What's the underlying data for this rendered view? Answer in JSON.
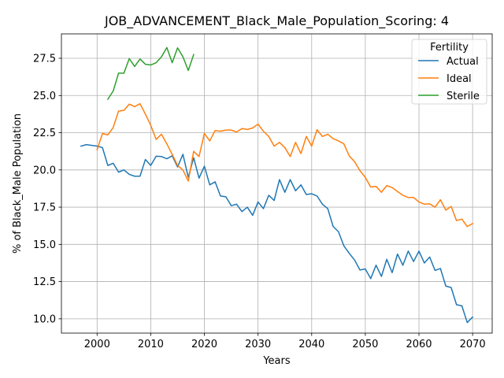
{
  "chart_data": {
    "type": "line",
    "title": "JOB_ADVANCEMENT_Black_Male_Population_Scoring: 4",
    "xlabel": "Years",
    "ylabel": "% of Black_Male Population",
    "xlim": [
      1993.35,
      2073.65
    ],
    "ylim": [
      9.04,
      29.14
    ],
    "xticks": [
      2000,
      2010,
      2020,
      2030,
      2040,
      2050,
      2060,
      2070
    ],
    "xtick_labels": [
      "2000",
      "2010",
      "2020",
      "2030",
      "2040",
      "2050",
      "2060",
      "2070"
    ],
    "yticks": [
      10,
      12.5,
      15,
      17.5,
      20,
      22.5,
      25,
      27.5
    ],
    "ytick_labels": [
      "10.0",
      "12.5",
      "15.0",
      "17.5",
      "20.0",
      "22.5",
      "25.0",
      "27.5"
    ],
    "grid": true,
    "legend": {
      "title": "Fertility",
      "position": "top-right"
    },
    "series": [
      {
        "name": "Actual",
        "color": "#1f77b4",
        "x": [
          1997,
          1998,
          1999,
          2000,
          2001,
          2002,
          2003,
          2004,
          2005,
          2006,
          2007,
          2008,
          2009,
          2010,
          2011,
          2012,
          2013,
          2014,
          2015,
          2016,
          2017,
          2018,
          2019,
          2020,
          2021,
          2022,
          2023,
          2024,
          2025,
          2026,
          2027,
          2028,
          2029,
          2030,
          2031,
          2032,
          2033,
          2034,
          2035,
          2036,
          2037,
          2038,
          2039,
          2040,
          2041,
          2042,
          2043,
          2044,
          2045,
          2046,
          2047,
          2048,
          2049,
          2050,
          2051,
          2052,
          2053,
          2054,
          2055,
          2056,
          2057,
          2058,
          2059,
          2060,
          2061,
          2062,
          2063,
          2064,
          2065,
          2066,
          2067,
          2068,
          2069,
          2070
        ],
        "y": [
          21.6,
          21.7,
          21.65,
          21.6,
          21.5,
          20.3,
          20.45,
          19.85,
          20.0,
          19.7,
          19.58,
          19.58,
          20.7,
          20.3,
          20.92,
          20.9,
          20.75,
          20.95,
          20.2,
          21.05,
          19.5,
          20.82,
          19.45,
          20.25,
          19.0,
          19.2,
          18.25,
          18.2,
          17.6,
          17.7,
          17.2,
          17.5,
          16.95,
          17.85,
          17.4,
          18.3,
          17.95,
          19.35,
          18.5,
          19.35,
          18.6,
          19.0,
          18.35,
          18.4,
          18.25,
          17.7,
          17.4,
          16.2,
          15.85,
          14.9,
          14.4,
          13.95,
          13.28,
          13.35,
          12.7,
          13.6,
          12.85,
          14.0,
          13.1,
          14.35,
          13.6,
          14.55,
          13.85,
          14.55,
          13.75,
          14.15,
          13.25,
          13.38,
          12.2,
          12.1,
          10.95,
          10.87,
          9.75,
          10.12
        ]
      },
      {
        "name": "Ideal",
        "color": "#ff7f0e",
        "x": [
          2000,
          2001,
          2002,
          2003,
          2004,
          2005,
          2006,
          2007,
          2008,
          2009,
          2010,
          2011,
          2012,
          2013,
          2014,
          2015,
          2016,
          2017,
          2018,
          2019,
          2020,
          2021,
          2022,
          2023,
          2024,
          2025,
          2026,
          2027,
          2028,
          2029,
          2030,
          2031,
          2032,
          2033,
          2034,
          2035,
          2036,
          2037,
          2038,
          2039,
          2040,
          2041,
          2042,
          2043,
          2044,
          2045,
          2046,
          2047,
          2048,
          2049,
          2050,
          2051,
          2052,
          2053,
          2054,
          2055,
          2056,
          2057,
          2058,
          2059,
          2060,
          2061,
          2062,
          2063,
          2064,
          2065,
          2066,
          2067,
          2068,
          2069,
          2070
        ],
        "y": [
          21.35,
          22.45,
          22.35,
          22.85,
          23.95,
          24.0,
          24.42,
          24.25,
          24.45,
          23.75,
          23.0,
          22.05,
          22.4,
          21.75,
          21.05,
          20.3,
          20.0,
          19.25,
          21.25,
          20.9,
          22.45,
          21.95,
          22.65,
          22.6,
          22.68,
          22.68,
          22.55,
          22.78,
          22.72,
          22.82,
          23.08,
          22.6,
          22.25,
          21.6,
          21.85,
          21.5,
          20.9,
          21.85,
          21.1,
          22.25,
          21.6,
          22.7,
          22.25,
          22.4,
          22.1,
          21.95,
          21.75,
          20.95,
          20.55,
          19.95,
          19.5,
          18.85,
          18.9,
          18.5,
          18.95,
          18.82,
          18.55,
          18.3,
          18.15,
          18.15,
          17.85,
          17.7,
          17.72,
          17.5,
          18.0,
          17.3,
          17.55,
          16.6,
          16.7,
          16.2,
          16.4
        ]
      },
      {
        "name": "Sterile",
        "color": "#2ca02c",
        "x": [
          2002,
          2003,
          2004,
          2005,
          2006,
          2007,
          2008,
          2009,
          2010,
          2011,
          2012,
          2013,
          2014,
          2015,
          2016,
          2017,
          2018
        ],
        "y": [
          24.75,
          25.3,
          26.5,
          26.5,
          27.48,
          26.95,
          27.45,
          27.1,
          27.05,
          27.2,
          27.6,
          28.22,
          27.2,
          28.2,
          27.6,
          26.68,
          27.75
        ]
      }
    ]
  }
}
